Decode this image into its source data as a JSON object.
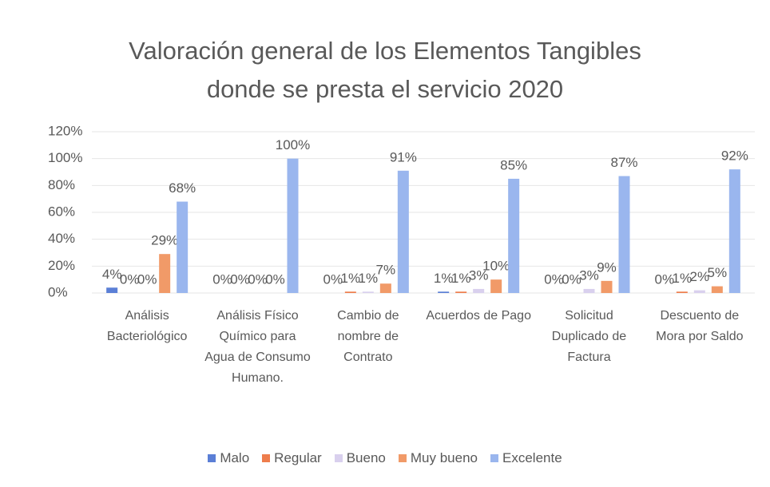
{
  "chart_data": {
    "type": "bar",
    "title": "Valoración general de los Elementos Tangibles donde se presta el servicio 2020",
    "categories": [
      "Análisis Bacteriológico",
      "Análisis Físico Químico para Agua de Consumo Humano.",
      "Cambio de nombre de Contrato",
      "Acuerdos de Pago",
      "Solicitud Duplicado de Factura",
      "Descuento de Mora por Saldo"
    ],
    "series": [
      {
        "name": "Malo",
        "color": "#5b7fd6",
        "values": [
          4,
          0,
          0,
          1,
          0,
          0
        ],
        "value_labels": [
          "4%",
          "0%",
          "0%",
          "1%",
          "0%",
          "0%"
        ]
      },
      {
        "name": "Regular",
        "color": "#ee7d4c",
        "values": [
          0,
          0,
          1,
          1,
          0,
          1
        ],
        "value_labels": [
          "0%",
          "0%",
          "1%",
          "1%",
          "0%",
          "1%"
        ]
      },
      {
        "name": "Bueno",
        "color": "#d9d0ee",
        "values": [
          0,
          0,
          1,
          3,
          3,
          2
        ],
        "value_labels": [
          "0%",
          "0%",
          "1%",
          "3%",
          "3%",
          "2%"
        ]
      },
      {
        "name": "Muy bueno",
        "color": "#f19a68",
        "values": [
          29,
          0,
          7,
          10,
          9,
          5
        ],
        "value_labels": [
          "29%",
          "0%",
          "7%",
          "10%",
          "9%",
          "5%"
        ]
      },
      {
        "name": "Excelente",
        "color": "#9ab6ee",
        "values": [
          68,
          100,
          91,
          85,
          87,
          92
        ],
        "value_labels": [
          "68%",
          "100%",
          "91%",
          "85%",
          "87%",
          "92%"
        ]
      }
    ],
    "ylim": [
      0,
      120
    ],
    "yticks": [
      {
        "value": 0,
        "label": "0%"
      },
      {
        "value": 20,
        "label": "20%"
      },
      {
        "value": 40,
        "label": "40%"
      },
      {
        "value": 60,
        "label": "60%"
      },
      {
        "value": 80,
        "label": "80%"
      },
      {
        "value": 100,
        "label": "100%"
      },
      {
        "value": 120,
        "label": "120%"
      }
    ],
    "grid": true
  }
}
